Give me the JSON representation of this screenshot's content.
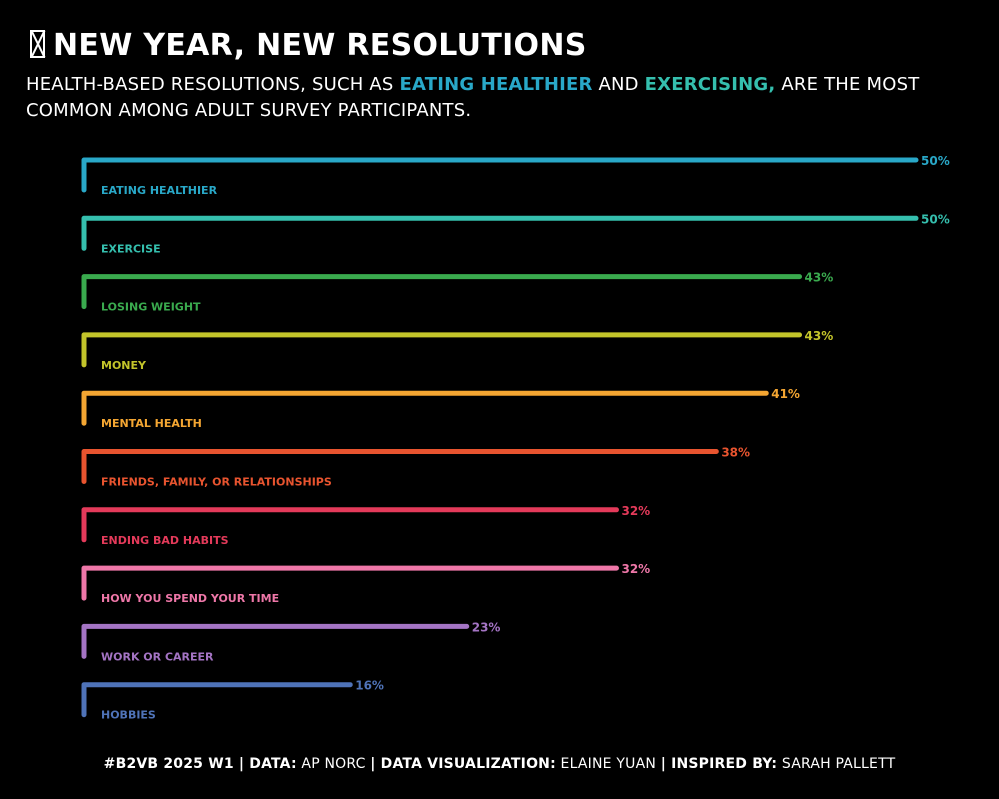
{
  "title": "NEW YEAR, NEW RESOLUTIONS",
  "subtitle": {
    "pre": "HEALTH-BASED RESOLUTIONS, SUCH AS ",
    "hl1": "EATING HEALTHIER",
    "mid": " AND ",
    "hl2": "EXERCISING,",
    "post": " ARE THE MOST COMMON AMONG ADULT SURVEY PARTICIPANTS."
  },
  "colors": {
    "background": "#000000",
    "text": "#ffffff",
    "hl1": "#29a8c8",
    "hl2": "#35bfae"
  },
  "footer": {
    "k1": "#B2VB 2025 W1 | DATA:",
    "v1": " AP NORC ",
    "k2": "| DATA VISUALIZATION:",
    "v2": " ELAINE YUAN ",
    "k3": "| INSPIRED BY:",
    "v3": " SARAH PALLETT"
  },
  "chart_data": {
    "type": "bar",
    "orientation": "horizontal",
    "categories": [
      "EATING HEALTHIER",
      "EXERCISE",
      "LOSING WEIGHT",
      "MONEY",
      "MENTAL HEALTH",
      "FRIENDS, FAMILY, OR RELATIONSHIPS",
      "ENDING BAD HABITS",
      "HOW YOU SPEND YOUR TIME",
      "WORK OR CAREER",
      "HOBBIES"
    ],
    "values": [
      50,
      50,
      43,
      43,
      41,
      38,
      32,
      32,
      23,
      16
    ],
    "value_labels": [
      "50%",
      "50%",
      "43%",
      "43%",
      "41%",
      "38%",
      "32%",
      "32%",
      "23%",
      "16%"
    ],
    "colors": [
      "#29a8c8",
      "#35bfae",
      "#3aaa4e",
      "#c3c42a",
      "#f4a632",
      "#e8542f",
      "#e43a5a",
      "#ee77a8",
      "#a474c4",
      "#4f73b8"
    ],
    "xlim": [
      0,
      50
    ],
    "grid": false,
    "legend": "none"
  }
}
